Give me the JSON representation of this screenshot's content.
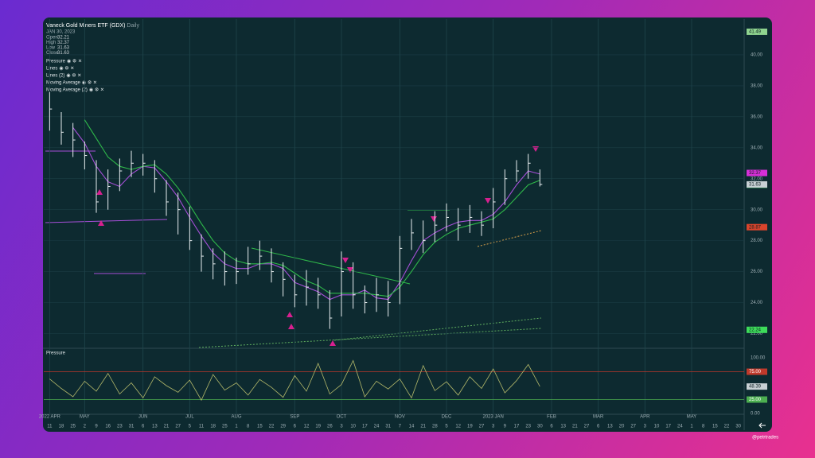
{
  "header": {
    "title": "Vaneck Gold Miners ETF (GDX)",
    "interval": "Daily",
    "date": "JAN 30, 2023",
    "ohlc": [
      {
        "label": "Open",
        "value": 32.21
      },
      {
        "label": "High",
        "value": 32.37
      },
      {
        "label": "Low",
        "value": 31.63
      },
      {
        "label": "Close",
        "value": 31.63
      }
    ]
  },
  "indicators": [
    "Pressure",
    "Lines",
    "Lines (2)"
  ],
  "watermark": "@petrtrades",
  "chart_data": {
    "type": "ohlc",
    "categories": [
      "11",
      "18",
      "25",
      "2",
      "9",
      "16",
      "23",
      "31",
      "6",
      "13",
      "21",
      "27",
      "5",
      "11",
      "18",
      "25",
      "1",
      "8",
      "15",
      "22",
      "29",
      "6",
      "12",
      "19",
      "26",
      "3",
      "10",
      "17",
      "24",
      "31",
      "7",
      "14",
      "21",
      "28",
      "5",
      "12",
      "19",
      "27",
      "3",
      "9",
      "17",
      "23",
      "30",
      "6",
      "13",
      "21",
      "27",
      "6",
      "13",
      "20",
      "27",
      "3",
      "10",
      "17",
      "24",
      "1",
      "8",
      "15",
      "22",
      "30"
    ],
    "months": [
      "2022 APR",
      null,
      null,
      "MAY",
      null,
      null,
      null,
      null,
      "JUN",
      null,
      null,
      null,
      "JUL",
      null,
      null,
      null,
      "AUG",
      null,
      null,
      null,
      null,
      "SEP",
      null,
      null,
      null,
      "OCT",
      null,
      null,
      null,
      null,
      "NOV",
      null,
      null,
      null,
      "DEC",
      null,
      null,
      null,
      "2023 JAN",
      null,
      null,
      null,
      null,
      "FEB",
      null,
      null,
      null,
      "MAR",
      null,
      null,
      null,
      "APR",
      null,
      null,
      null,
      "MAY",
      null,
      null,
      null,
      null
    ],
    "high": [
      37.6,
      36.3,
      35.6,
      34.4,
      33.2,
      32.6,
      33.3,
      33.8,
      33.6,
      33.2,
      31.9,
      31.1,
      30.2,
      28.4,
      27.5,
      27.3,
      26.9,
      27.6,
      28.0,
      27.5,
      26.6,
      25.8,
      26.1,
      25.6,
      24.8,
      27.3,
      26.6,
      25.1,
      25.6,
      25.4,
      28.3,
      29.4,
      29.3,
      29.9,
      30.4,
      30.1,
      30.3,
      29.9,
      31.4,
      32.6,
      33.2,
      33.6,
      32.6,
      null,
      null,
      null,
      null,
      null,
      null,
      null,
      null,
      null,
      null,
      null,
      null,
      null,
      null,
      null,
      null,
      null
    ],
    "low": [
      35.1,
      34.2,
      33.4,
      32.6,
      29.8,
      30.0,
      31.2,
      32.1,
      32.2,
      31.1,
      29.6,
      28.4,
      27.4,
      26.0,
      25.5,
      25.1,
      25.2,
      25.8,
      26.1,
      25.3,
      24.4,
      23.7,
      23.8,
      23.6,
      22.3,
      23.1,
      23.6,
      23.3,
      23.4,
      23.1,
      23.9,
      27.4,
      27.2,
      27.9,
      28.6,
      28.0,
      28.5,
      28.3,
      28.8,
      30.3,
      31.8,
      32.0,
      31.5,
      null,
      null,
      null,
      null,
      null,
      null,
      null,
      null,
      null,
      null,
      null,
      null,
      null,
      null,
      null,
      null,
      null
    ],
    "close": [
      36.5,
      35,
      34.5,
      33.5,
      30.5,
      31.5,
      32.5,
      33,
      33,
      32,
      30.5,
      30,
      28,
      27,
      26.5,
      26,
      26,
      26.5,
      27,
      26,
      25.5,
      24.5,
      25,
      24.5,
      23,
      26,
      24.5,
      24,
      24.5,
      24,
      27.5,
      28.5,
      28,
      29,
      29.5,
      29,
      29.5,
      29,
      30.5,
      32,
      32.5,
      33,
      31.63,
      null,
      null,
      null,
      null,
      null,
      null,
      null,
      null,
      null,
      null,
      null,
      null,
      null,
      null,
      null,
      null,
      null
    ],
    "bar_color": "#e8eef0",
    "series": [
      {
        "name": "Moving Average",
        "color": "#a64fd8",
        "values": [
          null,
          null,
          35.3,
          34.3,
          32.8,
          31.8,
          31.5,
          32.3,
          32.8,
          32.7,
          31.8,
          30.8,
          29.5,
          28.3,
          27.2,
          26.5,
          26.2,
          26.2,
          26.5,
          26.5,
          26.2,
          25.3,
          25.0,
          24.7,
          24.2,
          24.5,
          24.5,
          24.8,
          24.3,
          24.2,
          25.3,
          26.7,
          28.0,
          28.5,
          28.9,
          29.2,
          29.3,
          29.3,
          29.7,
          30.5,
          31.6,
          32.5,
          32.3,
          null,
          null,
          null,
          null,
          null,
          null,
          null,
          null,
          null,
          null,
          null,
          null,
          null,
          null,
          null,
          null,
          null
        ]
      },
      {
        "name": "Moving Average (2)",
        "color": "#2fb84a",
        "values": [
          null,
          null,
          null,
          35.8,
          34.6,
          33.4,
          32.8,
          32.6,
          32.8,
          32.9,
          32.3,
          31.4,
          30.3,
          29.1,
          28.0,
          27.2,
          26.7,
          26.5,
          26.5,
          26.6,
          26.4,
          25.9,
          25.4,
          25.1,
          24.6,
          24.6,
          24.6,
          24.6,
          24.5,
          24.4,
          25.0,
          26.0,
          27.1,
          27.9,
          28.4,
          28.8,
          29.0,
          29.2,
          29.4,
          30.0,
          30.8,
          31.6,
          31.9,
          null,
          null,
          null,
          null,
          null,
          null,
          null,
          null,
          null,
          null,
          null,
          null,
          null,
          null,
          null,
          null,
          null
        ]
      }
    ],
    "ylim": [
      21.1,
      42
    ],
    "yticks": [
      {
        "value": 22,
        "label": "22.00"
      },
      {
        "value": 24,
        "label": "24.00"
      },
      {
        "value": 26,
        "label": "26.00"
      },
      {
        "value": 28,
        "label": "28.00"
      },
      {
        "value": 30,
        "label": "30.00"
      },
      {
        "value": 32,
        "label": "32.00"
      },
      {
        "value": 34,
        "label": "34.00"
      },
      {
        "value": 36,
        "label": "36.00"
      },
      {
        "value": 38,
        "label": "38.00"
      },
      {
        "value": 40,
        "label": "40.00"
      }
    ],
    "grid": true,
    "price_labels": [
      {
        "value": 41.49,
        "color": "#8fd48f"
      },
      {
        "value": 32.37,
        "color": "#d62fd6"
      },
      {
        "value": 31.61,
        "color": "#46d46a"
      },
      {
        "value": 28.87,
        "color": "#d9442c"
      },
      {
        "value": 22.24,
        "color": "#3ddc5a"
      }
    ],
    "close_label_color": "#c8d0d4",
    "pressure": {
      "color": "#b3b86a",
      "values": [
        62,
        45,
        30,
        58,
        40,
        72,
        35,
        55,
        28,
        66,
        50,
        38,
        60,
        24,
        70,
        42,
        55,
        33,
        61,
        47,
        29,
        68,
        40,
        90,
        35,
        52,
        95,
        30,
        58,
        44,
        62,
        28,
        86,
        41,
        57,
        33,
        66,
        45,
        80,
        37,
        59,
        88,
        48.39,
        null,
        null,
        null,
        null,
        null,
        null,
        null,
        null,
        null,
        null,
        null,
        null,
        null,
        null,
        null,
        null,
        null
      ],
      "ylim": [
        0,
        100
      ],
      "yticks": [
        {
          "value": 0,
          "label": "0.00"
        },
        {
          "value": 50,
          "label": "50.00"
        },
        {
          "value": 100,
          "label": "100.00"
        }
      ],
      "levels": [
        {
          "value": 75,
          "label": "75.00",
          "color": "#c0392b"
        },
        {
          "value": 25,
          "label": "25.00",
          "color": "#4caf50"
        }
      ]
    }
  }
}
